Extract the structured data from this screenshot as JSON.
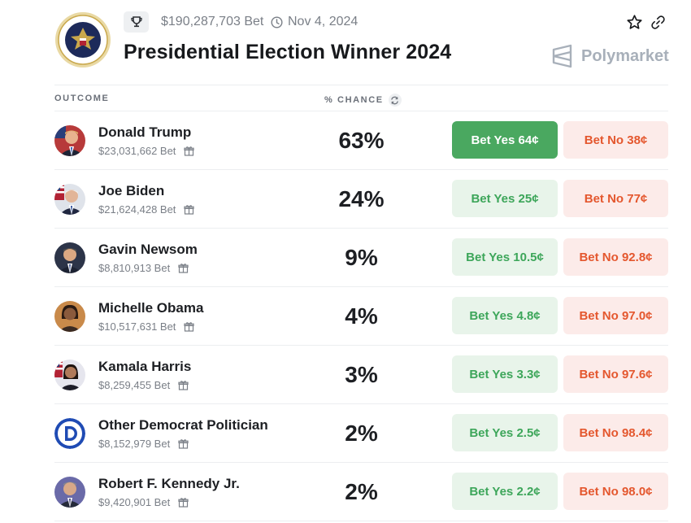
{
  "market": {
    "title": "Presidential Election Winner 2024",
    "volume": "$190,287,703 Bet",
    "date": "Nov 4, 2024",
    "brand": "Polymarket"
  },
  "table": {
    "col_outcome": "OUTCOME",
    "col_chance": "% CHANCE"
  },
  "outcomes": [
    {
      "name": "Donald Trump",
      "volume": "$23,031,662 Bet",
      "chance": "63%",
      "yes": "Bet Yes 64¢",
      "no": "Bet No 38¢"
    },
    {
      "name": "Joe Biden",
      "volume": "$21,624,428 Bet",
      "chance": "24%",
      "yes": "Bet Yes 25¢",
      "no": "Bet No 77¢"
    },
    {
      "name": "Gavin Newsom",
      "volume": "$8,810,913 Bet",
      "chance": "9%",
      "yes": "Bet Yes 10.5¢",
      "no": "Bet No 92.8¢"
    },
    {
      "name": "Michelle Obama",
      "volume": "$10,517,631 Bet",
      "chance": "4%",
      "yes": "Bet Yes 4.8¢",
      "no": "Bet No 97.0¢"
    },
    {
      "name": "Kamala Harris",
      "volume": "$8,259,455 Bet",
      "chance": "3%",
      "yes": "Bet Yes 3.3¢",
      "no": "Bet No 97.6¢"
    },
    {
      "name": "Other Democrat Politician",
      "volume": "$8,152,979 Bet",
      "chance": "2%",
      "yes": "Bet Yes 2.5¢",
      "no": "Bet No 98.4¢"
    },
    {
      "name": "Robert F. Kennedy Jr.",
      "volume": "$9,420,901 Bet",
      "chance": "2%",
      "yes": "Bet Yes 2.2¢",
      "no": "Bet No 98.0¢"
    }
  ],
  "colors": {
    "yes_text": "#3da65a",
    "yes_bg": "#e8f4ea",
    "yes_active_bg": "#4aa860",
    "no_text": "#e4572e",
    "no_bg": "#fcebe9",
    "democrat_blue": "#1f4bb4"
  },
  "icons": [
    "presidential-seal-icon",
    "trophy-icon",
    "clock-icon",
    "star-icon",
    "link-icon",
    "polymarket-logo-icon",
    "refresh-icon",
    "gift-icon",
    "democrat-logo-icon"
  ]
}
